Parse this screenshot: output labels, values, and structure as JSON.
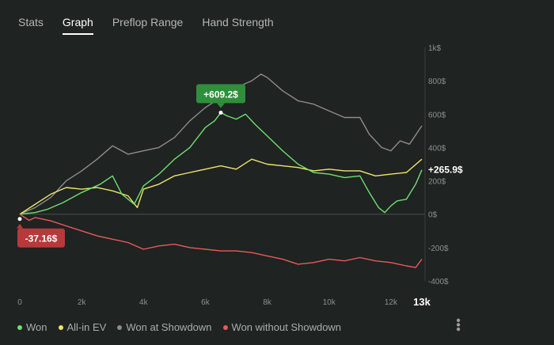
{
  "tabs": [
    {
      "label": "Stats",
      "active": false
    },
    {
      "label": "Graph",
      "active": true
    },
    {
      "label": "Preflop Range",
      "active": false
    },
    {
      "label": "Hand Strength",
      "active": false
    }
  ],
  "chart_data": {
    "type": "line",
    "y_ticks": [
      "1k$",
      "800$",
      "600$",
      "400$",
      "200$",
      "0$",
      "-200$",
      "-400$"
    ],
    "ylim": [
      -400,
      1000
    ],
    "x_ticks": [
      "0",
      "2k",
      "4k",
      "6k",
      "8k",
      "10k",
      "12k"
    ],
    "x_end_label": "13k",
    "xlim": [
      0,
      13000
    ],
    "grid": false,
    "series": [
      {
        "name": "Won",
        "color": "#6fe06f",
        "x": [
          0,
          500,
          900,
          1400,
          2000,
          2600,
          3000,
          3300,
          3700,
          4000,
          4500,
          5000,
          5500,
          6000,
          6300,
          6500,
          6700,
          7000,
          7300,
          7600,
          8000,
          8500,
          9000,
          9500,
          10000,
          10500,
          11000,
          11300,
          11600,
          11800,
          12000,
          12200,
          12500,
          12800,
          13000
        ],
        "values": [
          0,
          10,
          30,
          70,
          130,
          180,
          230,
          120,
          60,
          170,
          240,
          330,
          400,
          520,
          560,
          609.2,
          590,
          570,
          600,
          540,
          470,
          380,
          300,
          250,
          240,
          220,
          230,
          130,
          40,
          10,
          50,
          80,
          90,
          180,
          265.9
        ]
      },
      {
        "name": "All-in EV",
        "color": "#f0e56a",
        "x": [
          0,
          500,
          1000,
          1500,
          2000,
          2500,
          3000,
          3500,
          3800,
          4000,
          4500,
          5000,
          5500,
          6000,
          6500,
          7000,
          7500,
          8000,
          8500,
          9000,
          9500,
          10000,
          10500,
          11000,
          11500,
          12000,
          12500,
          13000
        ],
        "values": [
          0,
          60,
          120,
          160,
          150,
          160,
          140,
          110,
          40,
          150,
          180,
          230,
          250,
          270,
          290,
          270,
          330,
          300,
          290,
          280,
          260,
          270,
          260,
          260,
          230,
          240,
          250,
          330
        ]
      },
      {
        "name": "Won at Showdown",
        "color": "#8c8c8c",
        "x": [
          0,
          500,
          1000,
          1500,
          2000,
          2500,
          3000,
          3500,
          4000,
          4500,
          5000,
          5500,
          6000,
          6500,
          7000,
          7500,
          7800,
          8000,
          8500,
          9000,
          9500,
          10000,
          10500,
          11000,
          11300,
          11700,
          12000,
          12300,
          12600,
          13000
        ],
        "values": [
          0,
          40,
          100,
          200,
          260,
          330,
          410,
          360,
          380,
          400,
          460,
          560,
          640,
          700,
          760,
          800,
          840,
          820,
          740,
          680,
          660,
          620,
          580,
          580,
          480,
          400,
          380,
          440,
          420,
          530
        ]
      },
      {
        "name": "Won without Showdown",
        "color": "#e85a5a",
        "x": [
          0,
          300,
          500,
          1000,
          1500,
          2000,
          2500,
          3000,
          3500,
          4000,
          4500,
          5000,
          5500,
          6000,
          6500,
          7000,
          7500,
          8000,
          8500,
          9000,
          9500,
          10000,
          10500,
          11000,
          11500,
          12000,
          12500,
          12800,
          13000
        ],
        "values": [
          0,
          -37.16,
          -20,
          -40,
          -70,
          -100,
          -130,
          -150,
          -170,
          -210,
          -190,
          -180,
          -200,
          -210,
          -220,
          -220,
          -230,
          -250,
          -270,
          -300,
          -290,
          -270,
          -280,
          -260,
          -280,
          -290,
          -310,
          -320,
          -270
        ]
      }
    ],
    "annotations": [
      {
        "label": "+609.2$",
        "color": "#2f8f3c",
        "x": 6500,
        "value": 609.2
      },
      {
        "label": "-37.16$",
        "color": "#b63a3a",
        "x": 0,
        "value": -37.16
      },
      {
        "label": "+265.9$",
        "color": "#ffffff",
        "x": 13000,
        "value": 265.9
      }
    ]
  },
  "legend": [
    {
      "name": "Won",
      "color": "#6fe06f"
    },
    {
      "name": "All-in EV",
      "color": "#f0e56a"
    },
    {
      "name": "Won at Showdown",
      "color": "#8c8c8c"
    },
    {
      "name": "Won without Showdown",
      "color": "#e85a5a"
    }
  ],
  "menu_icon": "more-vertical-icon"
}
